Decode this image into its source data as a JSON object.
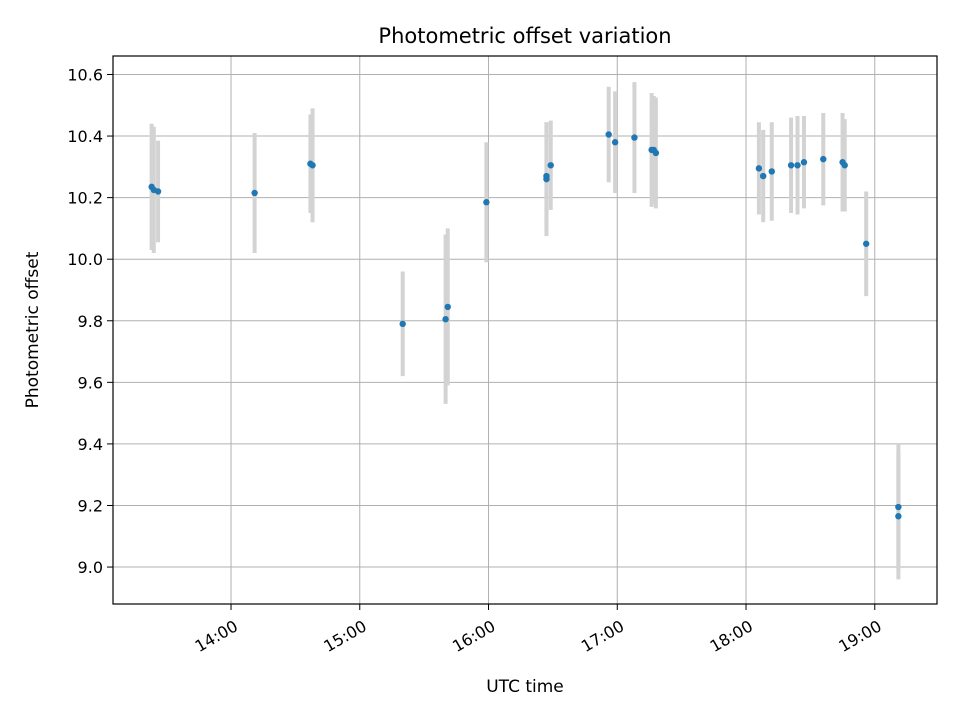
{
  "chart_data": {
    "type": "scatter",
    "title": "Photometric offset variation",
    "xlabel": "UTC time",
    "ylabel": "Photometric offset",
    "x_tick_labels": [
      "14:00",
      "15:00",
      "16:00",
      "17:00",
      "18:00",
      "19:00"
    ],
    "y_tick_labels": [
      "9.0",
      "9.2",
      "9.4",
      "9.6",
      "9.8",
      "10.0",
      "10.2",
      "10.4",
      "10.6"
    ],
    "xlim": [
      "13:05",
      "19:29"
    ],
    "ylim": [
      8.88,
      10.66
    ],
    "grid": true,
    "colors": {
      "point": "#1f77b4",
      "errorbar": "#d3d3d3",
      "grid": "#b0b0b0"
    },
    "points": [
      {
        "x": "13:23",
        "y": 10.235,
        "err": 0.205
      },
      {
        "x": "13:24",
        "y": 10.225,
        "err": 0.205
      },
      {
        "x": "13:26",
        "y": 10.22,
        "err": 0.165
      },
      {
        "x": "14:11",
        "y": 10.215,
        "err": 0.195
      },
      {
        "x": "14:37",
        "y": 10.31,
        "err": 0.16
      },
      {
        "x": "14:38",
        "y": 10.305,
        "err": 0.185
      },
      {
        "x": "15:20",
        "y": 9.79,
        "err": 0.17
      },
      {
        "x": "15:40",
        "y": 9.805,
        "err": 0.275
      },
      {
        "x": "15:41",
        "y": 9.845,
        "err": 0.255
      },
      {
        "x": "15:59",
        "y": 10.185,
        "err": 0.195
      },
      {
        "x": "16:27",
        "y": 10.26,
        "err": 0.185
      },
      {
        "x": "16:27",
        "y": 10.27,
        "err": 0.175
      },
      {
        "x": "16:29",
        "y": 10.305,
        "err": 0.145
      },
      {
        "x": "16:56",
        "y": 10.405,
        "err": 0.155
      },
      {
        "x": "16:59",
        "y": 10.38,
        "err": 0.165
      },
      {
        "x": "17:08",
        "y": 10.395,
        "err": 0.18
      },
      {
        "x": "17:16",
        "y": 10.355,
        "err": 0.185
      },
      {
        "x": "17:17",
        "y": 10.355,
        "err": 0.175
      },
      {
        "x": "17:18",
        "y": 10.345,
        "err": 0.18
      },
      {
        "x": "18:06",
        "y": 10.295,
        "err": 0.15
      },
      {
        "x": "18:08",
        "y": 10.27,
        "err": 0.15
      },
      {
        "x": "18:12",
        "y": 10.285,
        "err": 0.16
      },
      {
        "x": "18:21",
        "y": 10.305,
        "err": 0.155
      },
      {
        "x": "18:24",
        "y": 10.305,
        "err": 0.16
      },
      {
        "x": "18:27",
        "y": 10.315,
        "err": 0.15
      },
      {
        "x": "18:36",
        "y": 10.325,
        "err": 0.15
      },
      {
        "x": "18:45",
        "y": 10.315,
        "err": 0.16
      },
      {
        "x": "18:46",
        "y": 10.305,
        "err": 0.15
      },
      {
        "x": "18:56",
        "y": 10.05,
        "err": 0.17
      },
      {
        "x": "19:11",
        "y": 9.195,
        "err": 0.205
      },
      {
        "x": "19:11",
        "y": 9.165,
        "err": 0.205
      }
    ]
  }
}
